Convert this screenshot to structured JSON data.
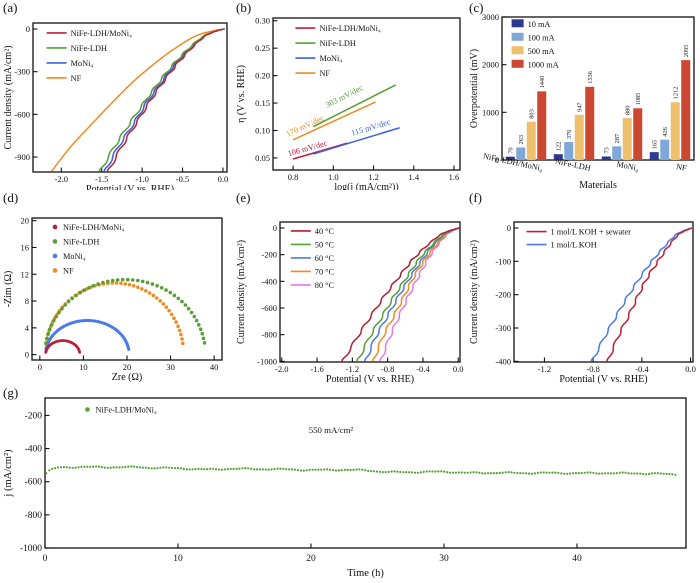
{
  "figure": {
    "background": "#ffffff"
  },
  "chart_data": [
    {
      "id": "a",
      "type": "line",
      "panel_label": "(a)",
      "xlabel": "Potential (V vs. RHE)",
      "ylabel": "Current density (mA/cm²)",
      "xlim": [
        -2.35,
        0.05
      ],
      "ylim": [
        -1005,
        42
      ],
      "xtick_vals": [
        -2.0,
        -1.5,
        -1.0,
        -0.5,
        0.0
      ],
      "xtick_labels": [
        "-2.0",
        "-1.5",
        "-1.0",
        "-0.5",
        "0.0"
      ],
      "ytick_vals": [
        0,
        -300,
        -600,
        -900
      ],
      "ytick_labels": [
        "0",
        "-300",
        "-600",
        "-900"
      ],
      "legend": {
        "x": 0.07,
        "y": 0.04,
        "marker": "line",
        "dy": 15
      },
      "series": [
        {
          "name": "NiFe-LDH/MoNi₄",
          "color": "#c01e36",
          "noisy": true,
          "points": [
            [
              0.02,
              0
            ],
            [
              -0.08,
              -14
            ],
            [
              -0.22,
              -50
            ],
            [
              -0.39,
              -135
            ],
            [
              -0.56,
              -240
            ],
            [
              -0.73,
              -365
            ],
            [
              -0.9,
              -505
            ],
            [
              -1.07,
              -660
            ],
            [
              -1.25,
              -825
            ],
            [
              -1.42,
              -1000
            ]
          ]
        },
        {
          "name": "NiFe-LDH",
          "color": "#55a033",
          "noisy": true,
          "points": [
            [
              0.02,
              0
            ],
            [
              -0.09,
              -14
            ],
            [
              -0.24,
              -50
            ],
            [
              -0.42,
              -135
            ],
            [
              -0.6,
              -240
            ],
            [
              -0.78,
              -365
            ],
            [
              -0.96,
              -505
            ],
            [
              -1.15,
              -660
            ],
            [
              -1.34,
              -825
            ],
            [
              -1.52,
              -1000
            ]
          ]
        },
        {
          "name": "MoNi₄",
          "color": "#3b5fe0",
          "noisy": true,
          "points": [
            [
              0.02,
              0
            ],
            [
              -0.08,
              -14
            ],
            [
              -0.23,
              -50
            ],
            [
              -0.4,
              -135
            ],
            [
              -0.58,
              -240
            ],
            [
              -0.75,
              -365
            ],
            [
              -0.93,
              -505
            ],
            [
              -1.1,
              -660
            ],
            [
              -1.29,
              -825
            ],
            [
              -1.46,
              -1000
            ]
          ]
        },
        {
          "name": "NF",
          "color": "#ee8c22",
          "noisy": false,
          "points": [
            [
              0.02,
              0
            ],
            [
              -0.13,
              -14
            ],
            [
              -0.34,
              -50
            ],
            [
              -0.59,
              -135
            ],
            [
              -0.84,
              -240
            ],
            [
              -1.1,
              -365
            ],
            [
              -1.35,
              -505
            ],
            [
              -1.61,
              -660
            ],
            [
              -1.88,
              -825
            ],
            [
              -2.12,
              -1000
            ]
          ]
        }
      ]
    },
    {
      "id": "b",
      "type": "tafel",
      "panel_label": "(b)",
      "xlabel": "log(j (mA/cm²))",
      "ylabel": "η (V vs. RHE)",
      "xlim": [
        0.7,
        1.63
      ],
      "ylim": [
        0.028,
        0.305
      ],
      "xtick_vals": [
        0.8,
        1.0,
        1.2,
        1.4,
        1.6
      ],
      "xtick_labels": [
        "0.8",
        "1.0",
        "1.2",
        "1.4",
        "1.6"
      ],
      "ytick_vals": [
        0.05,
        0.1,
        0.15,
        0.2,
        0.25,
        0.3
      ],
      "ytick_labels": [
        "0.05",
        "0.10",
        "0.15",
        "0.20",
        "0.25",
        "0.30"
      ],
      "legend": {
        "x": 0.12,
        "y": 0.04,
        "marker": "line",
        "dy": 15
      },
      "lines": [
        {
          "name": "NiFe-LDH/MoNi₄",
          "color": "#c01e36",
          "x1": 0.8,
          "y1": 0.048,
          "x2": 1.07,
          "y2": 0.077,
          "slope_label": "106 mV/dec",
          "label_x": 0.875,
          "label_y": 0.063,
          "label_rot": -16
        },
        {
          "name": "NiFe-LDH",
          "color": "#55a033",
          "x1": 0.9,
          "y1": 0.107,
          "x2": 1.31,
          "y2": 0.183,
          "slope_label": "303 mV/dec",
          "label_x": 1.06,
          "label_y": 0.158,
          "label_rot": -27
        },
        {
          "name": "MoNi₄",
          "color": "#3b5fe0",
          "x1": 0.9,
          "y1": 0.057,
          "x2": 1.33,
          "y2": 0.105,
          "slope_label": "115 mV/dec",
          "label_x": 1.19,
          "label_y": 0.101,
          "label_rot": -17
        },
        {
          "name": "NF",
          "color": "#ee8c22",
          "x1": 0.8,
          "y1": 0.083,
          "x2": 1.21,
          "y2": 0.152,
          "slope_label": "170 mV/dec",
          "label_x": 0.865,
          "label_y": 0.104,
          "label_rot": -25
        }
      ]
    },
    {
      "id": "c",
      "type": "bar",
      "panel_label": "(c)",
      "xlabel": "Materials",
      "ylabel": "Overpotential (mV)",
      "xlim": [
        0,
        4
      ],
      "ylim": [
        0,
        3000
      ],
      "ytick_vals": [
        0,
        1000,
        2000,
        3000
      ],
      "ytick_labels": [
        "0",
        "1000",
        "2000",
        "3000"
      ],
      "categories": [
        "NiFe-LDH/MoNi₄",
        "NiFe-LDH",
        "MoNi₄",
        "NF"
      ],
      "legend": {
        "x": 0.05,
        "y": 0.03,
        "marker": "square",
        "dy": 13.5
      },
      "series": [
        {
          "name": "10 mA",
          "color": "#2b3990",
          "values": [
            70,
            122,
            73,
            165
          ]
        },
        {
          "name": "100 mA",
          "color": "#7fa8d8",
          "values": [
            263,
            376,
            287,
            426
          ]
        },
        {
          "name": "500 mA",
          "color": "#eebf6d",
          "values": [
            803,
            947,
            880,
            1212
          ]
        },
        {
          "name": "1000 mA",
          "color": "#cc4731",
          "values": [
            1440,
            1536,
            1085,
            2095
          ]
        }
      ]
    },
    {
      "id": "d",
      "type": "nyquist",
      "panel_label": "(d)",
      "xlabel": "Zre (Ω)",
      "ylabel": "-Zim (Ω)",
      "xlim": [
        -1.8,
        41.8
      ],
      "ylim": [
        -0.8,
        20.4
      ],
      "xtick_vals": [
        0,
        10,
        20,
        30,
        40
      ],
      "xtick_labels": [
        "0",
        "10",
        "20",
        "30",
        "40"
      ],
      "ytick_vals": [
        0,
        4,
        8,
        12,
        16,
        20
      ],
      "ytick_labels": [
        "0",
        "4",
        "8",
        "12",
        "16",
        "20"
      ],
      "legend": {
        "x": 0.1,
        "y": 0.035,
        "marker": "dot",
        "dy": 14.5
      },
      "series": [
        {
          "name": "NiFe-LDH/MoNi₄",
          "color": "#c01e36",
          "x0": 1.3,
          "x1": 9.2,
          "peak": 2.1,
          "n": 80,
          "r": 1.3
        },
        {
          "name": "NiFe-LDH",
          "color": "#55a033",
          "x0": 1.2,
          "x1": 38.0,
          "peak": 11.2,
          "n": 46,
          "r": 1.8
        },
        {
          "name": "MoNi₄",
          "color": "#4a7ae8",
          "x0": 1.3,
          "x1": 20.5,
          "peak": 5.1,
          "n": 52,
          "r": 1.6
        },
        {
          "name": "NF",
          "color": "#ee8c22",
          "x0": 1.2,
          "x1": 33.0,
          "peak": 10.7,
          "n": 46,
          "r": 1.8
        }
      ]
    },
    {
      "id": "e",
      "type": "line",
      "panel_label": "(e)",
      "xlabel": "Potential (V vs. RHE)",
      "ylabel": "Current density (mA/cm²)",
      "xlim": [
        -2.02,
        0.02
      ],
      "ylim": [
        -1005,
        45
      ],
      "xtick_vals": [
        -2.0,
        -1.6,
        -1.2,
        -0.8,
        -0.4,
        0.0
      ],
      "xtick_labels": [
        "-2.0",
        "-1.6",
        "-1.2",
        "-0.8",
        "-0.4",
        "0.0"
      ],
      "ytick_vals": [
        0,
        -200,
        -400,
        -600,
        -800,
        -1000
      ],
      "ytick_labels": [
        "0",
        "-200",
        "-400",
        "-600",
        "-800",
        "-1000"
      ],
      "legend": {
        "x": 0.06,
        "y": 0.035,
        "marker": "line",
        "dy": 13.5
      },
      "series": [
        {
          "name": "40 °C",
          "color": "#b01e2e",
          "noisy": true,
          "points": [
            [
              0.01,
              0
            ],
            [
              -0.07,
              -14
            ],
            [
              -0.2,
              -50
            ],
            [
              -0.36,
              -135
            ],
            [
              -0.52,
              -240
            ],
            [
              -0.67,
              -365
            ],
            [
              -0.83,
              -505
            ],
            [
              -0.99,
              -660
            ],
            [
              -1.15,
              -825
            ],
            [
              -1.31,
              -1000
            ]
          ]
        },
        {
          "name": "50 °C",
          "color": "#55a033",
          "noisy": true,
          "points": [
            [
              0.01,
              0
            ],
            [
              -0.06,
              -14
            ],
            [
              -0.17,
              -50
            ],
            [
              -0.31,
              -135
            ],
            [
              -0.45,
              -240
            ],
            [
              -0.58,
              -365
            ],
            [
              -0.72,
              -505
            ],
            [
              -0.86,
              -660
            ],
            [
              -1.01,
              -825
            ],
            [
              -1.14,
              -1000
            ]
          ]
        },
        {
          "name": "60 °C",
          "color": "#4a7ae8",
          "noisy": true,
          "points": [
            [
              0.01,
              0
            ],
            [
              -0.05,
              -14
            ],
            [
              -0.16,
              -50
            ],
            [
              -0.29,
              -135
            ],
            [
              -0.41,
              -240
            ],
            [
              -0.54,
              -365
            ],
            [
              -0.67,
              -505
            ],
            [
              -0.8,
              -660
            ],
            [
              -0.94,
              -825
            ],
            [
              -1.05,
              -1000
            ]
          ]
        },
        {
          "name": "70 °C",
          "color": "#f08c1e",
          "noisy": true,
          "points": [
            [
              0.01,
              0
            ],
            [
              -0.05,
              -14
            ],
            [
              -0.14,
              -50
            ],
            [
              -0.26,
              -135
            ],
            [
              -0.38,
              -240
            ],
            [
              -0.5,
              -365
            ],
            [
              -0.61,
              -505
            ],
            [
              -0.73,
              -660
            ],
            [
              -0.86,
              -825
            ],
            [
              -0.96,
              -1000
            ]
          ]
        },
        {
          "name": "80 °C",
          "color": "#e878e8",
          "noisy": true,
          "points": [
            [
              0.01,
              0
            ],
            [
              -0.04,
              -14
            ],
            [
              -0.13,
              -50
            ],
            [
              -0.24,
              -135
            ],
            [
              -0.35,
              -240
            ],
            [
              -0.45,
              -365
            ],
            [
              -0.56,
              -505
            ],
            [
              -0.67,
              -660
            ],
            [
              -0.78,
              -825
            ],
            [
              -0.88,
              -1000
            ]
          ]
        }
      ]
    },
    {
      "id": "f",
      "type": "line",
      "panel_label": "(f)",
      "xlabel": "Potential (V vs. RHE)",
      "ylabel": "Current density (mA/cm²)",
      "xlim": [
        -1.45,
        0.02
      ],
      "ylim": [
        -402,
        18
      ],
      "xtick_vals": [
        -1.2,
        -0.8,
        -0.4,
        0.0
      ],
      "xtick_labels": [
        "-1.2",
        "-0.8",
        "-0.4",
        "0.0"
      ],
      "ytick_vals": [
        0,
        -100,
        -200,
        -300,
        -400
      ],
      "ytick_labels": [
        "0",
        "-100",
        "-200",
        "-300",
        "-400"
      ],
      "legend": {
        "x": 0.07,
        "y": 0.04,
        "marker": "line",
        "dy": 13
      },
      "series": [
        {
          "name": "1 mol/L KOH + sewater",
          "color": "#c01e36",
          "noisy": true,
          "points": [
            [
              0.01,
              0
            ],
            [
              -0.03,
              -6
            ],
            [
              -0.1,
              -20
            ],
            [
              -0.18,
              -54
            ],
            [
              -0.26,
              -96
            ],
            [
              -0.35,
              -146
            ],
            [
              -0.43,
              -202
            ],
            [
              -0.51,
              -264
            ],
            [
              -0.6,
              -330
            ],
            [
              -0.68,
              -400
            ]
          ]
        },
        {
          "name": "1 mol/L KOH",
          "color": "#4a7ae8",
          "noisy": true,
          "points": [
            [
              0.01,
              0
            ],
            [
              -0.04,
              -6
            ],
            [
              -0.12,
              -20
            ],
            [
              -0.21,
              -54
            ],
            [
              -0.31,
              -96
            ],
            [
              -0.41,
              -146
            ],
            [
              -0.51,
              -202
            ],
            [
              -0.61,
              -264
            ],
            [
              -0.71,
              -330
            ],
            [
              -0.81,
              -400
            ]
          ]
        }
      ]
    },
    {
      "id": "g",
      "type": "stability",
      "panel_label": "(g)",
      "xlabel": "Time (h)",
      "ylabel": "j (mA/cm²)",
      "xlim": [
        0,
        48.2
      ],
      "ylim": [
        -1000,
        -95
      ],
      "xtick_vals": [
        0,
        10,
        20,
        30,
        40
      ],
      "xtick_labels": [
        "0",
        "10",
        "20",
        "30",
        "40"
      ],
      "ytick_vals": [
        -200,
        -400,
        -600,
        -800,
        -1000
      ],
      "ytick_labels": [
        "-200",
        "-400",
        "-600",
        "-800",
        "-1000"
      ],
      "legend": {
        "x": 0.06,
        "y": 0.05,
        "marker": "dot",
        "dy": 14
      },
      "annotation": {
        "text": "550 mA/cm²",
        "x": 21.5,
        "y": -305
      },
      "series": [
        {
          "name": "NiFe-LDH/MoNi₄",
          "color": "#55a033",
          "r": 1.1,
          "step": 0.22,
          "anchors": [
            [
              0.1,
              -550
            ],
            [
              0.4,
              -530
            ],
            [
              1,
              -516
            ],
            [
              3,
              -512
            ],
            [
              5,
              -510
            ],
            [
              7,
              -512
            ],
            [
              8,
              -518
            ],
            [
              10,
              -520
            ],
            [
              12,
              -524
            ],
            [
              14,
              -522
            ],
            [
              16,
              -526
            ],
            [
              18,
              -524
            ],
            [
              20,
              -528
            ],
            [
              22,
              -530
            ],
            [
              24,
              -532
            ],
            [
              26,
              -540
            ],
            [
              28,
              -542
            ],
            [
              30,
              -542
            ],
            [
              32,
              -546
            ],
            [
              34,
              -544
            ],
            [
              36,
              -550
            ],
            [
              38,
              -548
            ],
            [
              40,
              -546
            ],
            [
              42,
              -548
            ],
            [
              44,
              -552
            ],
            [
              46,
              -550
            ],
            [
              47.6,
              -556
            ]
          ]
        }
      ]
    }
  ]
}
